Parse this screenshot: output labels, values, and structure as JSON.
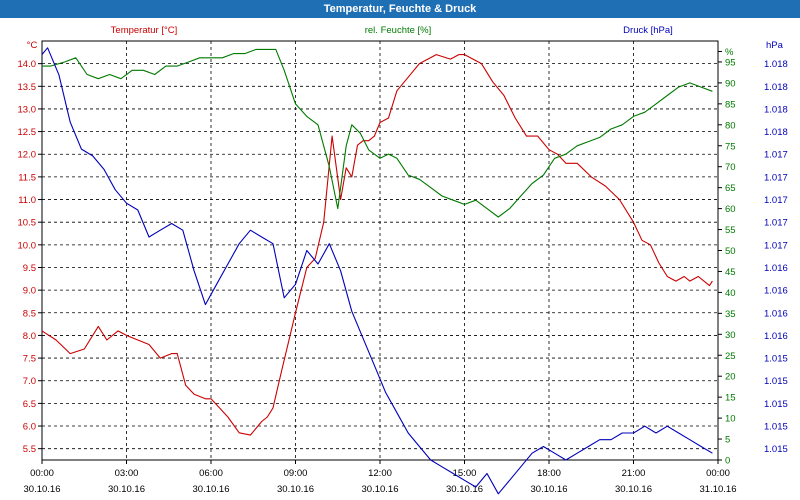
{
  "window": {
    "title": "Temperatur, Feuchte & Druck"
  },
  "colors": {
    "temperature": "#cc0000",
    "humidity": "#007a00",
    "pressure": "#0000bb",
    "grid": "#000000",
    "axis": "#000000"
  },
  "chart_data": {
    "type": "line",
    "title": "Temperatur, Feuchte & Druck",
    "x_ticks": [
      {
        "time": "00:00",
        "date": "30.10.16"
      },
      {
        "time": "03:00",
        "date": "30.10.16"
      },
      {
        "time": "06:00",
        "date": "30.10.16"
      },
      {
        "time": "09:00",
        "date": "30.10.16"
      },
      {
        "time": "12:00",
        "date": "30.10.16"
      },
      {
        "time": "15:00",
        "date": "30.10.16"
      },
      {
        "time": "18:00",
        "date": "30.10.16"
      },
      {
        "time": "21:00",
        "date": "30.10.16"
      },
      {
        "time": "00:00",
        "date": "31.10.16"
      }
    ],
    "x_range_hours": [
      0,
      24
    ],
    "axes": {
      "temperature": {
        "label": "Temperatur [°C]",
        "unit": "°C",
        "range": [
          5.25,
          14.5
        ],
        "ticks": [
          "14.0",
          "13.5",
          "13.0",
          "12.5",
          "12.0",
          "11.5",
          "11.0",
          "10.5",
          "10.0",
          "9.5",
          "9.0",
          "8.5",
          "8.0",
          "7.5",
          "7.0",
          "6.5",
          "6.0",
          "5.5"
        ]
      },
      "humidity": {
        "label": "rel. Feuchte [%]",
        "unit": "%",
        "range": [
          0,
          100
        ],
        "ticks": [
          "0",
          "5",
          "10",
          "15",
          "20",
          "25",
          "30",
          "35",
          "40",
          "45",
          "50",
          "55",
          "60",
          "65",
          "70",
          "75",
          "80",
          "85",
          "90",
          "95",
          "%"
        ]
      },
      "pressure": {
        "label": "Druck [hPa]",
        "unit": "hPa",
        "range": [
          1015.0,
          1018.1
        ],
        "ticks": [
          "1.018",
          "1.018",
          "1.018",
          "1.018",
          "1.017",
          "1.017",
          "1.017",
          "1.017",
          "1.017",
          "1.016",
          "1.016",
          "1.016",
          "1.016",
          "1.015",
          "1.015",
          "1.015",
          "1.015",
          "1.015"
        ]
      }
    },
    "series": [
      {
        "name": "Temperatur",
        "axis": "temperature",
        "color": "#cc0000",
        "x": [
          0,
          0.5,
          1.0,
          1.5,
          2.0,
          2.3,
          2.7,
          3.0,
          3.4,
          3.8,
          4.2,
          4.6,
          4.8,
          5.1,
          5.4,
          5.8,
          6.0,
          6.3,
          6.6,
          7.0,
          7.4,
          7.8,
          8.0,
          8.2,
          8.5,
          9.0,
          9.4,
          9.7,
          10.0,
          10.3,
          10.6,
          10.8,
          11.0,
          11.2,
          11.4,
          11.6,
          11.8,
          12.0,
          12.3,
          12.6,
          13.0,
          13.4,
          14.0,
          14.5,
          14.8,
          15.0,
          15.3,
          15.6,
          16.0,
          16.4,
          16.8,
          17.2,
          17.6,
          18.0,
          18.3,
          18.6,
          19.0,
          19.5,
          20.0,
          20.5,
          21.0,
          21.3,
          21.6,
          21.9,
          22.2,
          22.5,
          22.8,
          23.0,
          23.3,
          23.5,
          23.7,
          23.8
        ],
        "values": [
          8.1,
          7.9,
          7.6,
          7.7,
          8.2,
          7.9,
          8.1,
          8.0,
          7.9,
          7.8,
          7.5,
          7.6,
          7.6,
          6.9,
          6.7,
          6.6,
          6.6,
          6.4,
          6.2,
          5.85,
          5.8,
          6.1,
          6.2,
          6.4,
          7.2,
          8.5,
          9.5,
          9.7,
          10.5,
          12.4,
          11.0,
          11.7,
          11.5,
          12.2,
          12.3,
          12.3,
          12.4,
          12.7,
          12.8,
          13.4,
          13.7,
          14.0,
          14.2,
          14.1,
          14.2,
          14.2,
          14.1,
          14.0,
          13.6,
          13.3,
          12.8,
          12.4,
          12.4,
          12.1,
          12.0,
          11.8,
          11.8,
          11.5,
          11.3,
          11.0,
          10.5,
          10.1,
          10.0,
          9.6,
          9.3,
          9.2,
          9.3,
          9.2,
          9.3,
          9.2,
          9.1,
          9.2
        ]
      },
      {
        "name": "rel. Feuchte",
        "axis": "humidity",
        "color": "#007a00",
        "x": [
          0,
          0.3,
          0.8,
          1.2,
          1.6,
          2.0,
          2.4,
          2.8,
          3.2,
          3.6,
          4.0,
          4.4,
          4.8,
          5.2,
          5.6,
          6.0,
          6.4,
          6.8,
          7.2,
          7.6,
          8.0,
          8.3,
          8.6,
          9.0,
          9.4,
          9.8,
          10.2,
          10.5,
          10.8,
          11.0,
          11.3,
          11.6,
          12.0,
          12.3,
          12.6,
          13.0,
          13.4,
          13.8,
          14.2,
          14.6,
          15.0,
          15.4,
          15.8,
          16.2,
          16.6,
          17.0,
          17.4,
          17.8,
          18.2,
          18.6,
          19.0,
          19.4,
          19.8,
          20.2,
          20.6,
          21.0,
          21.4,
          21.8,
          22.2,
          22.6,
          23.0,
          23.4,
          23.8
        ],
        "values": [
          94,
          94,
          95,
          96,
          92,
          91,
          92,
          91,
          93,
          93,
          92,
          94,
          94,
          95,
          96,
          96,
          96,
          97,
          97,
          98,
          98,
          98,
          93,
          85,
          82,
          80,
          70,
          60,
          75,
          80,
          78,
          74,
          72,
          73,
          72,
          68,
          67,
          65,
          63,
          62,
          61,
          62,
          60,
          58,
          60,
          63,
          66,
          68,
          72,
          73,
          75,
          76,
          77,
          79,
          80,
          82,
          83,
          85,
          87,
          89,
          90,
          89,
          88
        ]
      },
      {
        "name": "Druck",
        "axis": "pressure",
        "color": "#0000bb",
        "x": [
          0,
          0.2,
          0.6,
          1.0,
          1.4,
          1.8,
          2.2,
          2.6,
          3.0,
          3.4,
          3.8,
          4.2,
          4.6,
          5.0,
          5.4,
          5.8,
          6.2,
          6.6,
          7.0,
          7.4,
          7.8,
          8.2,
          8.6,
          9.0,
          9.4,
          9.8,
          10.2,
          10.6,
          11.0,
          11.4,
          11.8,
          12.2,
          12.6,
          13.0,
          13.4,
          13.8,
          14.2,
          14.6,
          15.0,
          15.4,
          15.8,
          16.2,
          16.6,
          17.0,
          17.4,
          17.8,
          18.2,
          18.6,
          19.0,
          19.4,
          19.8,
          20.2,
          20.6,
          21.0,
          21.4,
          21.8,
          22.2,
          22.6,
          23.0,
          23.4,
          23.8
        ],
        "values": [
          1018.0,
          1018.05,
          1017.85,
          1017.5,
          1017.3,
          1017.25,
          1017.15,
          1017.0,
          1016.9,
          1016.85,
          1016.65,
          1016.7,
          1016.75,
          1016.7,
          1016.4,
          1016.15,
          1016.3,
          1016.45,
          1016.6,
          1016.7,
          1016.65,
          1016.6,
          1016.2,
          1016.3,
          1016.55,
          1016.45,
          1016.6,
          1016.4,
          1016.1,
          1015.9,
          1015.7,
          1015.5,
          1015.35,
          1015.2,
          1015.1,
          1015.0,
          1014.95,
          1014.9,
          1014.85,
          1014.8,
          1014.9,
          1014.75,
          1014.85,
          1014.95,
          1015.05,
          1015.1,
          1015.05,
          1015.0,
          1015.05,
          1015.1,
          1015.15,
          1015.15,
          1015.2,
          1015.2,
          1015.25,
          1015.2,
          1015.25,
          1015.2,
          1015.15,
          1015.1,
          1015.05
        ]
      }
    ]
  }
}
